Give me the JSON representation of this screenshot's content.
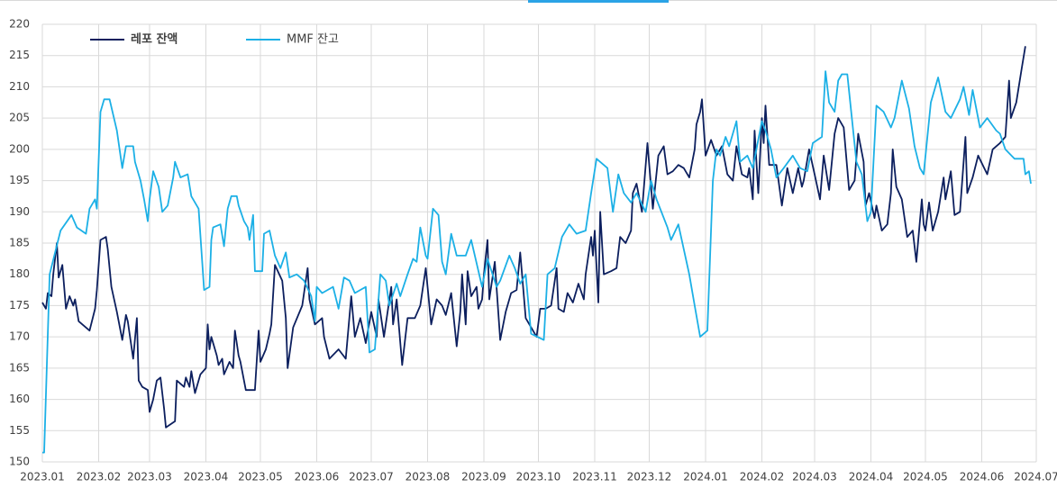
{
  "chart_data": {
    "type": "line",
    "xlim": [
      0,
      547
    ],
    "xticks": [
      {
        "value": 0,
        "label": "2023.01"
      },
      {
        "value": 31,
        "label": "2023.02"
      },
      {
        "value": 59,
        "label": "2023.03"
      },
      {
        "value": 90,
        "label": "2023.04"
      },
      {
        "value": 120,
        "label": "2023.05"
      },
      {
        "value": 151,
        "label": "2023.06"
      },
      {
        "value": 181,
        "label": "2023.07"
      },
      {
        "value": 212,
        "label": "2023.08"
      },
      {
        "value": 243,
        "label": "2023.09"
      },
      {
        "value": 273,
        "label": "2023.10"
      },
      {
        "value": 304,
        "label": "2023.11"
      },
      {
        "value": 334,
        "label": "2023.12"
      },
      {
        "value": 365,
        "label": "2024.01"
      },
      {
        "value": 396,
        "label": "2024.02"
      },
      {
        "value": 425,
        "label": "2024.03"
      },
      {
        "value": 456,
        "label": "2024.04"
      },
      {
        "value": 486,
        "label": "2024.05"
      },
      {
        "value": 517,
        "label": "2024.06"
      },
      {
        "value": 547,
        "label": "2024.07"
      }
    ],
    "ylim": [
      150,
      220
    ],
    "yticks": [
      150,
      155,
      160,
      165,
      170,
      175,
      180,
      185,
      190,
      195,
      200,
      205,
      210,
      215,
      220
    ],
    "grid": true,
    "series": [
      {
        "name": "레포 잔액",
        "color": "#0c1f5e",
        "x": [
          0,
          2,
          3,
          5,
          6,
          8,
          9,
          11,
          13,
          15,
          17,
          18,
          20,
          26,
          29,
          30,
          32,
          35,
          36,
          38,
          41,
          44,
          46,
          47,
          50,
          52,
          53,
          55,
          58,
          59,
          61,
          63,
          65,
          67,
          68,
          73,
          74,
          78,
          79,
          81,
          82,
          84,
          87,
          90,
          91,
          92,
          93,
          96,
          97,
          99,
          100,
          103,
          105,
          106,
          108,
          109,
          112,
          117,
          119,
          120,
          123,
          125,
          126,
          128,
          132,
          134,
          135,
          138,
          143,
          146,
          147,
          150,
          154,
          155,
          158,
          163,
          167,
          170,
          172,
          175,
          178,
          181,
          184,
          185,
          188,
          192,
          193,
          195,
          198,
          201,
          205,
          208,
          211,
          214,
          217,
          220,
          222,
          225,
          228,
          230,
          231,
          233,
          234,
          236,
          239,
          240,
          242,
          243,
          245,
          246,
          249,
          252,
          255,
          258,
          261,
          263,
          266,
          272,
          274,
          277,
          280,
          283,
          284,
          287,
          289,
          292,
          295,
          298,
          299,
          302,
          303,
          304,
          306,
          307,
          309,
          313,
          316,
          318,
          321,
          324,
          325,
          327,
          330,
          333,
          335,
          336,
          339,
          342,
          344,
          347,
          350,
          353,
          356,
          359,
          360,
          362,
          363,
          365,
          368,
          371,
          374,
          377,
          380,
          382,
          385,
          388,
          389,
          391,
          392,
          394,
          396,
          397,
          398,
          400,
          404,
          407,
          410,
          413,
          416,
          418,
          419,
          422,
          425,
          428,
          430,
          433,
          436,
          438,
          441,
          444,
          447,
          449,
          452,
          453,
          455,
          458,
          459,
          462,
          465,
          467,
          468,
          470,
          473,
          476,
          479,
          481,
          484,
          485,
          486,
          488,
          490,
          493,
          496,
          497,
          500,
          502,
          505,
          508,
          509,
          512,
          515,
          520,
          523,
          527,
          530,
          532,
          533,
          536,
          539,
          541
        ],
        "values": [
          175.5,
          174.5,
          177,
          176.5,
          180,
          185,
          179.5,
          181.5,
          174.5,
          176.5,
          175,
          176,
          172.5,
          171,
          174.5,
          177.5,
          185.5,
          186,
          184,
          178,
          174,
          169.5,
          173.5,
          172.5,
          166.5,
          173,
          163,
          162,
          161.5,
          158,
          160,
          163,
          163.5,
          158.5,
          155.5,
          156.5,
          163,
          162,
          163.5,
          162,
          164.5,
          161,
          164,
          165,
          172,
          168,
          170,
          167,
          165.5,
          166.5,
          164,
          166,
          165,
          171,
          167,
          166,
          161.5,
          161.5,
          171,
          166,
          168,
          170.5,
          172,
          181.5,
          179,
          173,
          165,
          171.5,
          175,
          181,
          176,
          172,
          173,
          170,
          166.5,
          168,
          166.5,
          176.5,
          170,
          173,
          169,
          174,
          170,
          176,
          170,
          178,
          172,
          176,
          165.5,
          173,
          173,
          175,
          181,
          172,
          176,
          175,
          173.5,
          177,
          168.5,
          174,
          180,
          172,
          180.5,
          176.5,
          178,
          174.5,
          176,
          180,
          185.5,
          176,
          182,
          169.5,
          174,
          177,
          177.5,
          183.5,
          173,
          170,
          174.5,
          174.5,
          175,
          181,
          174.5,
          174,
          177,
          175.5,
          178.5,
          176,
          180,
          186,
          183,
          187,
          175.5,
          190,
          180,
          180.5,
          181,
          186,
          185,
          187,
          193,
          194.5,
          190,
          201,
          194,
          190.5,
          199,
          200.5,
          196,
          196.5,
          197.5,
          197,
          195.5,
          200,
          204,
          206,
          208,
          199,
          201.5,
          199,
          200.5,
          196,
          195,
          200.5,
          196,
          195.5,
          197,
          192,
          203,
          193,
          205,
          201,
          207,
          197.5,
          197.5,
          191,
          197,
          193,
          197,
          194,
          195,
          200,
          196,
          192,
          199,
          193.5,
          202.5,
          205,
          203.5,
          193.5,
          195,
          202.5,
          198,
          191,
          193,
          189,
          191,
          187,
          188,
          193,
          200,
          194,
          192,
          186,
          187,
          182,
          192,
          188,
          187,
          191.5,
          187,
          190,
          195.5,
          192,
          196.5,
          189.5,
          190,
          202,
          193,
          195.5,
          199,
          196,
          200,
          201,
          202,
          211,
          205,
          207.5,
          213,
          216.5
        ]
      },
      {
        "name": "MMF 잔고",
        "color": "#1cb0e6",
        "x": [
          0,
          1,
          4,
          10,
          16,
          19,
          24,
          26,
          29,
          30,
          32,
          34,
          37,
          41,
          44,
          46,
          50,
          51,
          54,
          56,
          58,
          59,
          61,
          64,
          66,
          69,
          72,
          73,
          76,
          80,
          82,
          86,
          89,
          92,
          93,
          94,
          98,
          100,
          102,
          104,
          107,
          108,
          111,
          113,
          114,
          116,
          117,
          121,
          122,
          125,
          128,
          131,
          134,
          136,
          140,
          144,
          148,
          150,
          151,
          154,
          160,
          163,
          166,
          169,
          172,
          178,
          180,
          183,
          186,
          189,
          191,
          195,
          197,
          201,
          204,
          206,
          208,
          211,
          212,
          215,
          218,
          220,
          222,
          225,
          228,
          233,
          236,
          242,
          245,
          250,
          252,
          257,
          260,
          263,
          266,
          269,
          276,
          278,
          282,
          286,
          290,
          294,
          299,
          302,
          305,
          311,
          314,
          317,
          320,
          324,
          327,
          332,
          335,
          338,
          344,
          346,
          350,
          356,
          359,
          362,
          366,
          369,
          371,
          373,
          376,
          378,
          382,
          384,
          388,
          391,
          396,
          398,
          401,
          404,
          408,
          413,
          417,
          421,
          424,
          429,
          431,
          433,
          436,
          438,
          440,
          443,
          448,
          451,
          454,
          456,
          459,
          463,
          467,
          469,
          473,
          477,
          480,
          483,
          485,
          489,
          493,
          497,
          500,
          505,
          507,
          510,
          512,
          516,
          520,
          525,
          527,
          530,
          535,
          540,
          541,
          543,
          544
        ],
        "values": [
          151.5,
          151.5,
          180,
          187,
          189.5,
          187.5,
          186.5,
          190.5,
          192,
          190.5,
          206,
          208,
          208,
          203,
          197,
          200.5,
          200.5,
          198,
          195,
          192,
          188.5,
          192,
          196.5,
          194,
          190,
          191,
          195.5,
          198,
          195.5,
          196,
          192.5,
          190.5,
          177.5,
          178,
          185.5,
          187.5,
          188,
          184.5,
          190.5,
          192.5,
          192.5,
          191,
          188.5,
          187.5,
          185.5,
          189.5,
          180.5,
          180.5,
          186.5,
          187,
          183,
          181,
          183.5,
          179.5,
          180,
          179,
          176.5,
          172.5,
          178,
          177,
          178,
          174.5,
          179.5,
          179,
          177,
          178,
          167.5,
          168,
          180,
          179,
          175,
          178.5,
          176.5,
          180,
          182.5,
          182,
          187.5,
          183,
          182.5,
          190.5,
          189.5,
          182,
          180,
          186.5,
          183,
          183,
          185.5,
          178,
          182.5,
          178,
          179,
          183,
          181,
          178.5,
          180,
          170.5,
          169.5,
          180,
          181,
          186,
          188,
          186.5,
          187,
          193,
          198.5,
          197,
          190,
          196,
          193,
          191.5,
          193,
          190,
          195,
          192,
          187.5,
          185.5,
          188,
          180,
          175,
          170,
          171,
          195,
          200,
          199,
          202,
          200.5,
          204.5,
          198,
          199,
          197,
          204.5,
          203,
          200,
          195.5,
          197,
          199,
          197,
          196.5,
          201,
          202,
          212.5,
          207.5,
          206,
          211,
          212,
          212,
          198,
          196,
          188.5,
          190,
          207,
          206,
          203.5,
          205,
          211,
          206.5,
          200.5,
          197,
          196,
          207.5,
          211.5,
          206,
          205,
          208,
          210,
          205.5,
          209.5,
          203.5,
          205,
          203,
          202.5,
          200,
          198.5,
          198.5,
          196,
          196.5,
          194.5
        ]
      }
    ]
  }
}
